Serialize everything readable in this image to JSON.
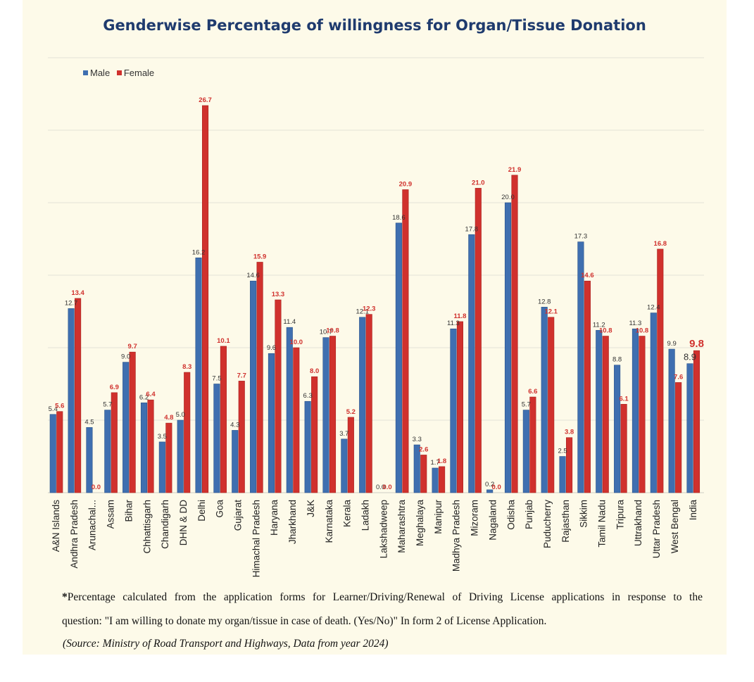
{
  "chart_data": {
    "type": "bar",
    "title": "Genderwise Percentage of willingness for Organ/Tissue Donation",
    "xlabel": "",
    "ylabel": "",
    "ylim": [
      0,
      30
    ],
    "grid": true,
    "legend_position": "top-left",
    "categories": [
      "A&N Islands",
      "Andhra Pradesh",
      "Arunachal...",
      "Assam",
      "Bihar",
      "Chhattisgarh",
      "Chandigarh",
      "DHN & DD",
      "Delhi",
      "Goa",
      "Gujarat",
      "Himachal Pradesh",
      "Haryana",
      "Jharkhand",
      "J&K",
      "Karnataka",
      "Kerala",
      "Ladakh",
      "Lakshadweep",
      "Maharashtra",
      "Meghalaya",
      "Manipur",
      "Madhya Pradesh",
      "Mizoram",
      "Nagaland",
      "Odisha",
      "Punjab",
      "Puducherry",
      "Rajasthan",
      "Sikkim",
      "Tamil Nadu",
      "Tripura",
      "Uttrakhand",
      "Uttar Pradesh",
      "West Bengal",
      "India"
    ],
    "series": [
      {
        "name": "Male",
        "color": "#3f6fb0",
        "label_color": "#333333",
        "values": [
          5.4,
          12.7,
          4.5,
          5.7,
          9.0,
          6.2,
          3.5,
          5.0,
          16.2,
          7.5,
          4.3,
          14.6,
          9.6,
          11.4,
          6.3,
          10.7,
          3.7,
          12.1,
          0.0,
          18.6,
          3.3,
          1.7,
          11.3,
          17.8,
          0.2,
          20.0,
          5.7,
          12.8,
          2.5,
          17.3,
          11.2,
          8.8,
          11.3,
          12.4,
          9.9,
          8.9
        ],
        "labels": [
          "5.4",
          "12.7",
          "4.5",
          "5.7",
          "9.0",
          "6.2",
          "3.5",
          "5.0",
          "16.2",
          "7.5",
          "4.3",
          "14.6",
          "9.6",
          "11.4",
          "6.3",
          "10.7",
          "3.7",
          "12.1",
          "0.0",
          "18.6",
          "3.3",
          "1.7",
          "11.3",
          "17.8",
          "0.2",
          "20.0",
          "5.7",
          "12.8",
          "2.5",
          "17.3",
          "11.2",
          "8.8",
          "11.3",
          "12.4",
          "9.9",
          "8.9"
        ]
      },
      {
        "name": "Female",
        "color": "#d0312d",
        "label_color": "#d0312d",
        "values": [
          5.6,
          13.4,
          0.0,
          6.9,
          9.7,
          6.4,
          4.8,
          8.3,
          26.7,
          10.1,
          7.7,
          15.9,
          13.3,
          10.0,
          8.0,
          10.8,
          5.2,
          12.3,
          0.0,
          20.9,
          2.6,
          1.8,
          11.8,
          21.0,
          0.0,
          21.9,
          6.6,
          12.1,
          3.8,
          14.6,
          10.8,
          6.1,
          10.8,
          16.8,
          7.6,
          9.8
        ],
        "labels": [
          "5.6",
          "13.4",
          "0.0",
          "6.9",
          "9.7",
          "6.4",
          "4.8",
          "8.3",
          "26.7",
          "10.1",
          "7.7",
          "15.9",
          "13.3",
          "10.0",
          "8.0",
          "10.8",
          "5.2",
          "12.3",
          "0.0",
          "20.9",
          "2.6",
          "1.8",
          "11.8",
          "21.0",
          "0.0",
          "21.9",
          "6.6",
          "12.1",
          "3.8",
          "14.6",
          "10.8",
          "6.1",
          "10.8",
          "16.8",
          "7.6",
          "9.8"
        ]
      }
    ]
  },
  "legend": {
    "male_label": "Male",
    "female_label": "Female"
  },
  "notes": {
    "star": "*",
    "line1": "Percentage calculated from the application forms for Learner/Driving/Renewal of Driving License applications in response to the",
    "line2": "question: \"I am willing to donate my organ/tissue in case of death. (Yes/No)\" In form 2 of License Application.",
    "source": "(Source: Ministry of Road Transport and Highways, Data from year 2024)"
  }
}
